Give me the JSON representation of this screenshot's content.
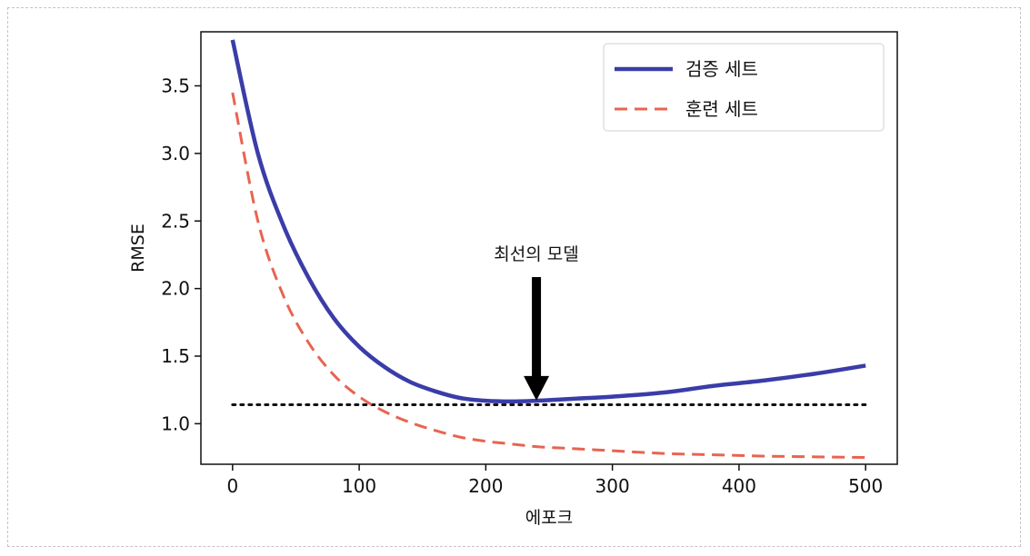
{
  "chart_data": {
    "type": "line",
    "title": "",
    "xlabel": "에포크",
    "ylabel": "RMSE",
    "xlim": [
      -25,
      525
    ],
    "ylim": [
      0.7,
      3.9
    ],
    "xticks": [
      0,
      100,
      200,
      300,
      400,
      500
    ],
    "yticks": [
      1.0,
      1.5,
      2.0,
      2.5,
      3.0,
      3.5
    ],
    "xtick_labels": [
      "0",
      "100",
      "200",
      "300",
      "400",
      "500"
    ],
    "ytick_labels": [
      "1.0",
      "1.5",
      "2.0",
      "2.5",
      "3.0",
      "3.5"
    ],
    "grid": false,
    "legend_position": "top-right",
    "x": [
      0,
      20,
      40,
      60,
      80,
      100,
      120,
      140,
      160,
      180,
      200,
      220,
      240,
      260,
      280,
      300,
      340,
      380,
      420,
      460,
      500
    ],
    "series": [
      {
        "name": "검증 세트",
        "color": "#3a3da8",
        "style": "solid",
        "values": [
          3.84,
          3.0,
          2.47,
          2.08,
          1.78,
          1.57,
          1.42,
          1.31,
          1.24,
          1.19,
          1.17,
          1.165,
          1.17,
          1.18,
          1.19,
          1.2,
          1.23,
          1.28,
          1.32,
          1.37,
          1.43
        ]
      },
      {
        "name": "훈련 세트",
        "color": "#e86451",
        "style": "dashed",
        "values": [
          3.45,
          2.5,
          1.95,
          1.6,
          1.36,
          1.2,
          1.09,
          1.01,
          0.95,
          0.9,
          0.87,
          0.85,
          0.83,
          0.82,
          0.81,
          0.8,
          0.78,
          0.77,
          0.76,
          0.755,
          0.75
        ]
      }
    ],
    "reference_line": {
      "y": 1.14,
      "color": "#111111",
      "style": "dotted"
    },
    "annotation": {
      "text": "최선의 모델",
      "x": 240,
      "y": 1.165,
      "arrow": "down"
    }
  }
}
